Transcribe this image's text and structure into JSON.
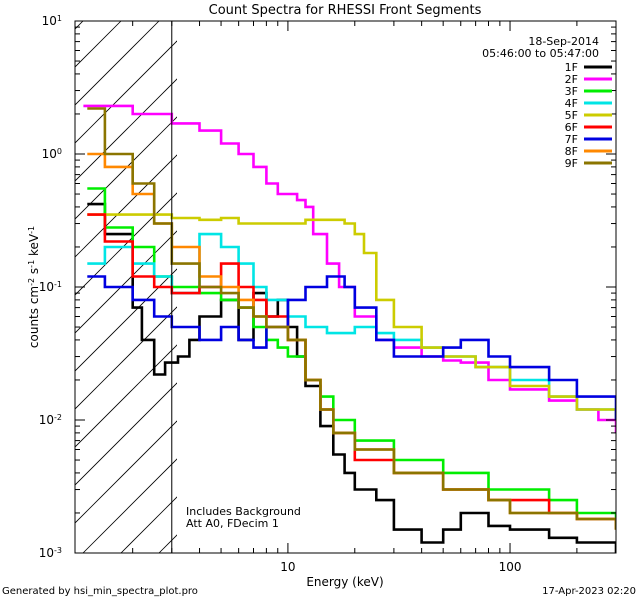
{
  "chart_data": {
    "type": "line",
    "title": "Count Spectra for RHESSI Front Segments",
    "xlabel": "Energy (keV)",
    "ylabel_base": "counts cm",
    "ylabel_mid": " s",
    "ylabel_end": " keV",
    "ylabel_exp": "-2",
    "ylabel_exp2": "-1",
    "ylabel_exp3": "-1",
    "xscale": "log",
    "yscale": "log",
    "xlim": [
      1.1,
      300
    ],
    "ylim": [
      0.001,
      10
    ],
    "x_ticks": [
      {
        "value": 10,
        "label": "10"
      },
      {
        "value": 100,
        "label": "100"
      }
    ],
    "y_ticks": [
      {
        "value": 0.001,
        "base": "10",
        "exp": "-3"
      },
      {
        "value": 0.01,
        "base": "10",
        "exp": "-2"
      },
      {
        "value": 0.1,
        "base": "10",
        "exp": "-1"
      },
      {
        "value": 1,
        "base": "10",
        "exp": "0"
      },
      {
        "value": 10,
        "base": "10",
        "exp": "1"
      }
    ],
    "hatched_region": [
      1.1,
      3.0
    ],
    "date": "18-Sep-2014",
    "time_range": "05:46:00 to 05:47:00",
    "annotation_1": "Includes Background",
    "annotation_2": "Att A0, FDecim 1",
    "footer_left": "Generated by hsi_min_spectra_plot.pro",
    "footer_right": "17-Apr-2023 02:20",
    "series": [
      {
        "name": "1F",
        "color": "#000000",
        "points": [
          [
            1.25,
            0.42
          ],
          [
            1.5,
            0.25
          ],
          [
            2.0,
            0.07
          ],
          [
            2.2,
            0.04
          ],
          [
            2.5,
            0.022
          ],
          [
            2.8,
            0.027
          ],
          [
            3.0,
            0.027
          ],
          [
            3.2,
            0.03
          ],
          [
            3.6,
            0.04
          ],
          [
            4.0,
            0.06
          ],
          [
            5.0,
            0.08
          ],
          [
            6.0,
            0.04
          ],
          [
            7.0,
            0.09
          ],
          [
            8.0,
            0.06
          ],
          [
            9.0,
            0.08
          ],
          [
            10.0,
            0.05
          ],
          [
            11.0,
            0.03
          ],
          [
            12.0,
            0.018
          ],
          [
            14.0,
            0.009
          ],
          [
            16.0,
            0.0055
          ],
          [
            18.0,
            0.004
          ],
          [
            20.0,
            0.003
          ],
          [
            25.0,
            0.0025
          ],
          [
            30.0,
            0.0015
          ],
          [
            40.0,
            0.0012
          ],
          [
            50.0,
            0.0015
          ],
          [
            60.0,
            0.002
          ],
          [
            80.0,
            0.0016
          ],
          [
            100.0,
            0.0015
          ],
          [
            150.0,
            0.0013
          ],
          [
            200.0,
            0.0012
          ],
          [
            300.0,
            0.001
          ]
        ]
      },
      {
        "name": "2F",
        "color": "#ff00ff",
        "points": [
          [
            1.2,
            2.3
          ],
          [
            1.5,
            2.3
          ],
          [
            2.0,
            2.0
          ],
          [
            3.0,
            1.7
          ],
          [
            4.0,
            1.5
          ],
          [
            5.0,
            1.2
          ],
          [
            6.0,
            1.0
          ],
          [
            7.0,
            0.8
          ],
          [
            8.0,
            0.6
          ],
          [
            9.0,
            0.5
          ],
          [
            10.0,
            0.5
          ],
          [
            11.0,
            0.45
          ],
          [
            12.0,
            0.4
          ],
          [
            13.0,
            0.25
          ],
          [
            15.0,
            0.15
          ],
          [
            17.0,
            0.1
          ],
          [
            20.0,
            0.06
          ],
          [
            25.0,
            0.04
          ],
          [
            30.0,
            0.035
          ],
          [
            40.0,
            0.03
          ],
          [
            50.0,
            0.028
          ],
          [
            60.0,
            0.027
          ],
          [
            80.0,
            0.02
          ],
          [
            100.0,
            0.017
          ],
          [
            150.0,
            0.014
          ],
          [
            200.0,
            0.012
          ],
          [
            250.0,
            0.01
          ],
          [
            300.0,
            0.008
          ]
        ]
      },
      {
        "name": "3F",
        "color": "#00ee00",
        "points": [
          [
            1.25,
            0.55
          ],
          [
            1.5,
            0.28
          ],
          [
            2.0,
            0.2
          ],
          [
            2.5,
            0.12
          ],
          [
            3.0,
            0.1
          ],
          [
            4.0,
            0.09
          ],
          [
            5.0,
            0.08
          ],
          [
            6.0,
            0.07
          ],
          [
            7.0,
            0.05
          ],
          [
            8.0,
            0.04
          ],
          [
            9.0,
            0.035
          ],
          [
            10.0,
            0.03
          ],
          [
            12.0,
            0.02
          ],
          [
            14.0,
            0.015
          ],
          [
            16.0,
            0.01
          ],
          [
            20.0,
            0.007
          ],
          [
            30.0,
            0.005
          ],
          [
            50.0,
            0.004
          ],
          [
            80.0,
            0.003
          ],
          [
            100.0,
            0.003
          ],
          [
            150.0,
            0.0025
          ],
          [
            200.0,
            0.002
          ],
          [
            300.0,
            0.0015
          ]
        ]
      },
      {
        "name": "4F",
        "color": "#00e5e5",
        "points": [
          [
            1.25,
            0.15
          ],
          [
            1.5,
            0.2
          ],
          [
            2.0,
            0.15
          ],
          [
            2.5,
            0.12
          ],
          [
            3.0,
            0.09
          ],
          [
            4.0,
            0.25
          ],
          [
            5.0,
            0.2
          ],
          [
            6.0,
            0.15
          ],
          [
            7.0,
            0.1
          ],
          [
            8.0,
            0.08
          ],
          [
            10.0,
            0.06
          ],
          [
            12.0,
            0.05
          ],
          [
            15.0,
            0.045
          ],
          [
            20.0,
            0.05
          ],
          [
            25.0,
            0.045
          ],
          [
            30.0,
            0.04
          ],
          [
            40.0,
            0.035
          ],
          [
            50.0,
            0.03
          ],
          [
            70.0,
            0.025
          ],
          [
            100.0,
            0.02
          ],
          [
            150.0,
            0.015
          ],
          [
            200.0,
            0.012
          ],
          [
            300.0,
            0.01
          ]
        ]
      },
      {
        "name": "5F",
        "color": "#cccc00",
        "points": [
          [
            1.25,
            0.35
          ],
          [
            2.0,
            0.35
          ],
          [
            3.0,
            0.33
          ],
          [
            4.0,
            0.32
          ],
          [
            5.0,
            0.33
          ],
          [
            6.0,
            0.3
          ],
          [
            8.0,
            0.3
          ],
          [
            10.0,
            0.3
          ],
          [
            12.0,
            0.32
          ],
          [
            15.0,
            0.32
          ],
          [
            18.0,
            0.3
          ],
          [
            20.0,
            0.25
          ],
          [
            22.0,
            0.18
          ],
          [
            25.0,
            0.08
          ],
          [
            30.0,
            0.05
          ],
          [
            40.0,
            0.035
          ],
          [
            50.0,
            0.03
          ],
          [
            70.0,
            0.025
          ],
          [
            100.0,
            0.018
          ],
          [
            150.0,
            0.015
          ],
          [
            200.0,
            0.012
          ],
          [
            300.0,
            0.01
          ]
        ]
      },
      {
        "name": "6F",
        "color": "#ff0000",
        "points": [
          [
            1.25,
            0.35
          ],
          [
            1.5,
            0.22
          ],
          [
            2.0,
            0.12
          ],
          [
            2.5,
            0.1
          ],
          [
            3.0,
            0.09
          ],
          [
            4.0,
            0.1
          ],
          [
            5.0,
            0.15
          ],
          [
            6.0,
            0.1
          ],
          [
            7.0,
            0.08
          ],
          [
            8.0,
            0.06
          ],
          [
            10.0,
            0.04
          ],
          [
            12.0,
            0.02
          ],
          [
            14.0,
            0.012
          ],
          [
            16.0,
            0.008
          ],
          [
            20.0,
            0.005
          ],
          [
            30.0,
            0.004
          ],
          [
            50.0,
            0.003
          ],
          [
            80.0,
            0.0025
          ],
          [
            100.0,
            0.0025
          ],
          [
            150.0,
            0.002
          ],
          [
            200.0,
            0.0018
          ],
          [
            300.0,
            0.0015
          ]
        ]
      },
      {
        "name": "7F",
        "color": "#0000e0",
        "points": [
          [
            1.25,
            0.12
          ],
          [
            1.5,
            0.1
          ],
          [
            2.0,
            0.08
          ],
          [
            2.5,
            0.06
          ],
          [
            3.0,
            0.05
          ],
          [
            4.0,
            0.04
          ],
          [
            5.0,
            0.05
          ],
          [
            6.0,
            0.04
          ],
          [
            7.0,
            0.035
          ],
          [
            8.0,
            0.05
          ],
          [
            10.0,
            0.08
          ],
          [
            12.0,
            0.1
          ],
          [
            15.0,
            0.12
          ],
          [
            18.0,
            0.1
          ],
          [
            20.0,
            0.07
          ],
          [
            25.0,
            0.04
          ],
          [
            30.0,
            0.03
          ],
          [
            40.0,
            0.03
          ],
          [
            50.0,
            0.035
          ],
          [
            60.0,
            0.04
          ],
          [
            80.0,
            0.03
          ],
          [
            100.0,
            0.025
          ],
          [
            150.0,
            0.02
          ],
          [
            200.0,
            0.015
          ],
          [
            300.0,
            0.01
          ]
        ]
      },
      {
        "name": "8F",
        "color": "#ff8800",
        "points": [
          [
            1.25,
            1.0
          ],
          [
            1.5,
            0.8
          ],
          [
            2.0,
            0.5
          ],
          [
            2.5,
            0.3
          ],
          [
            3.0,
            0.2
          ],
          [
            4.0,
            0.12
          ],
          [
            5.0,
            0.1
          ],
          [
            6.0,
            0.08
          ],
          [
            7.0,
            0.06
          ],
          [
            8.0,
            0.05
          ],
          [
            10.0,
            0.04
          ],
          [
            12.0,
            0.02
          ],
          [
            14.0,
            0.012
          ],
          [
            16.0,
            0.008
          ],
          [
            20.0,
            0.006
          ],
          [
            30.0,
            0.004
          ],
          [
            50.0,
            0.003
          ],
          [
            80.0,
            0.0025
          ],
          [
            100.0,
            0.002
          ],
          [
            150.0,
            0.002
          ],
          [
            200.0,
            0.0018
          ],
          [
            300.0,
            0.0015
          ]
        ]
      },
      {
        "name": "9F",
        "color": "#8b7500",
        "points": [
          [
            1.25,
            2.2
          ],
          [
            1.5,
            1.0
          ],
          [
            2.0,
            0.6
          ],
          [
            2.5,
            0.3
          ],
          [
            3.0,
            0.15
          ],
          [
            4.0,
            0.1
          ],
          [
            5.0,
            0.09
          ],
          [
            6.0,
            0.07
          ],
          [
            7.0,
            0.06
          ],
          [
            8.0,
            0.05
          ],
          [
            10.0,
            0.04
          ],
          [
            12.0,
            0.02
          ],
          [
            14.0,
            0.012
          ],
          [
            16.0,
            0.008
          ],
          [
            20.0,
            0.006
          ],
          [
            30.0,
            0.004
          ],
          [
            50.0,
            0.003
          ],
          [
            80.0,
            0.0025
          ],
          [
            100.0,
            0.002
          ],
          [
            150.0,
            0.002
          ],
          [
            200.0,
            0.0018
          ],
          [
            300.0,
            0.0015
          ]
        ]
      }
    ]
  }
}
